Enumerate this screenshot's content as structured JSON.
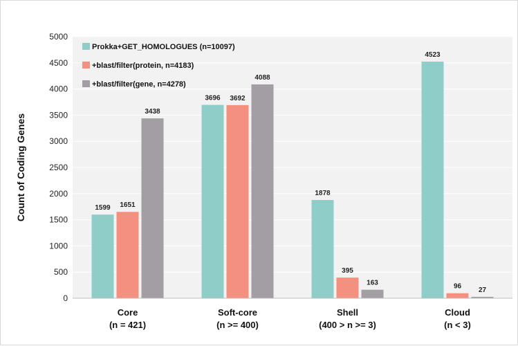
{
  "chart_data": {
    "type": "bar",
    "title": "",
    "xlabel": "",
    "ylabel": "Count of Coding Genes",
    "ylim": [
      0,
      5000
    ],
    "yticks": [
      0,
      500,
      1000,
      1500,
      2000,
      2500,
      3000,
      3500,
      4000,
      4500,
      5000
    ],
    "grid": true,
    "legend_position": "top-left",
    "categories": [
      {
        "line1": "Core",
        "line2": "(n = 421)"
      },
      {
        "line1": "Soft-core",
        "line2": "(n >= 400)"
      },
      {
        "line1": "Shell",
        "line2": "(400 > n >= 3)"
      },
      {
        "line1": "Cloud",
        "line2": "(n < 3)"
      }
    ],
    "series": [
      {
        "name": "Prokka+GET_HOMOLOGUES (n=10097)",
        "color": "#8ecdc8",
        "values": [
          1599,
          3696,
          1878,
          4523
        ]
      },
      {
        "name": "+blast/filter(protein, n=4183)",
        "color": "#f4907f",
        "values": [
          1651,
          3692,
          395,
          96
        ]
      },
      {
        "name": "+blast/filter(gene, n=4278)",
        "color": "#a39ea4",
        "values": [
          3438,
          4088,
          163,
          27
        ]
      }
    ]
  }
}
